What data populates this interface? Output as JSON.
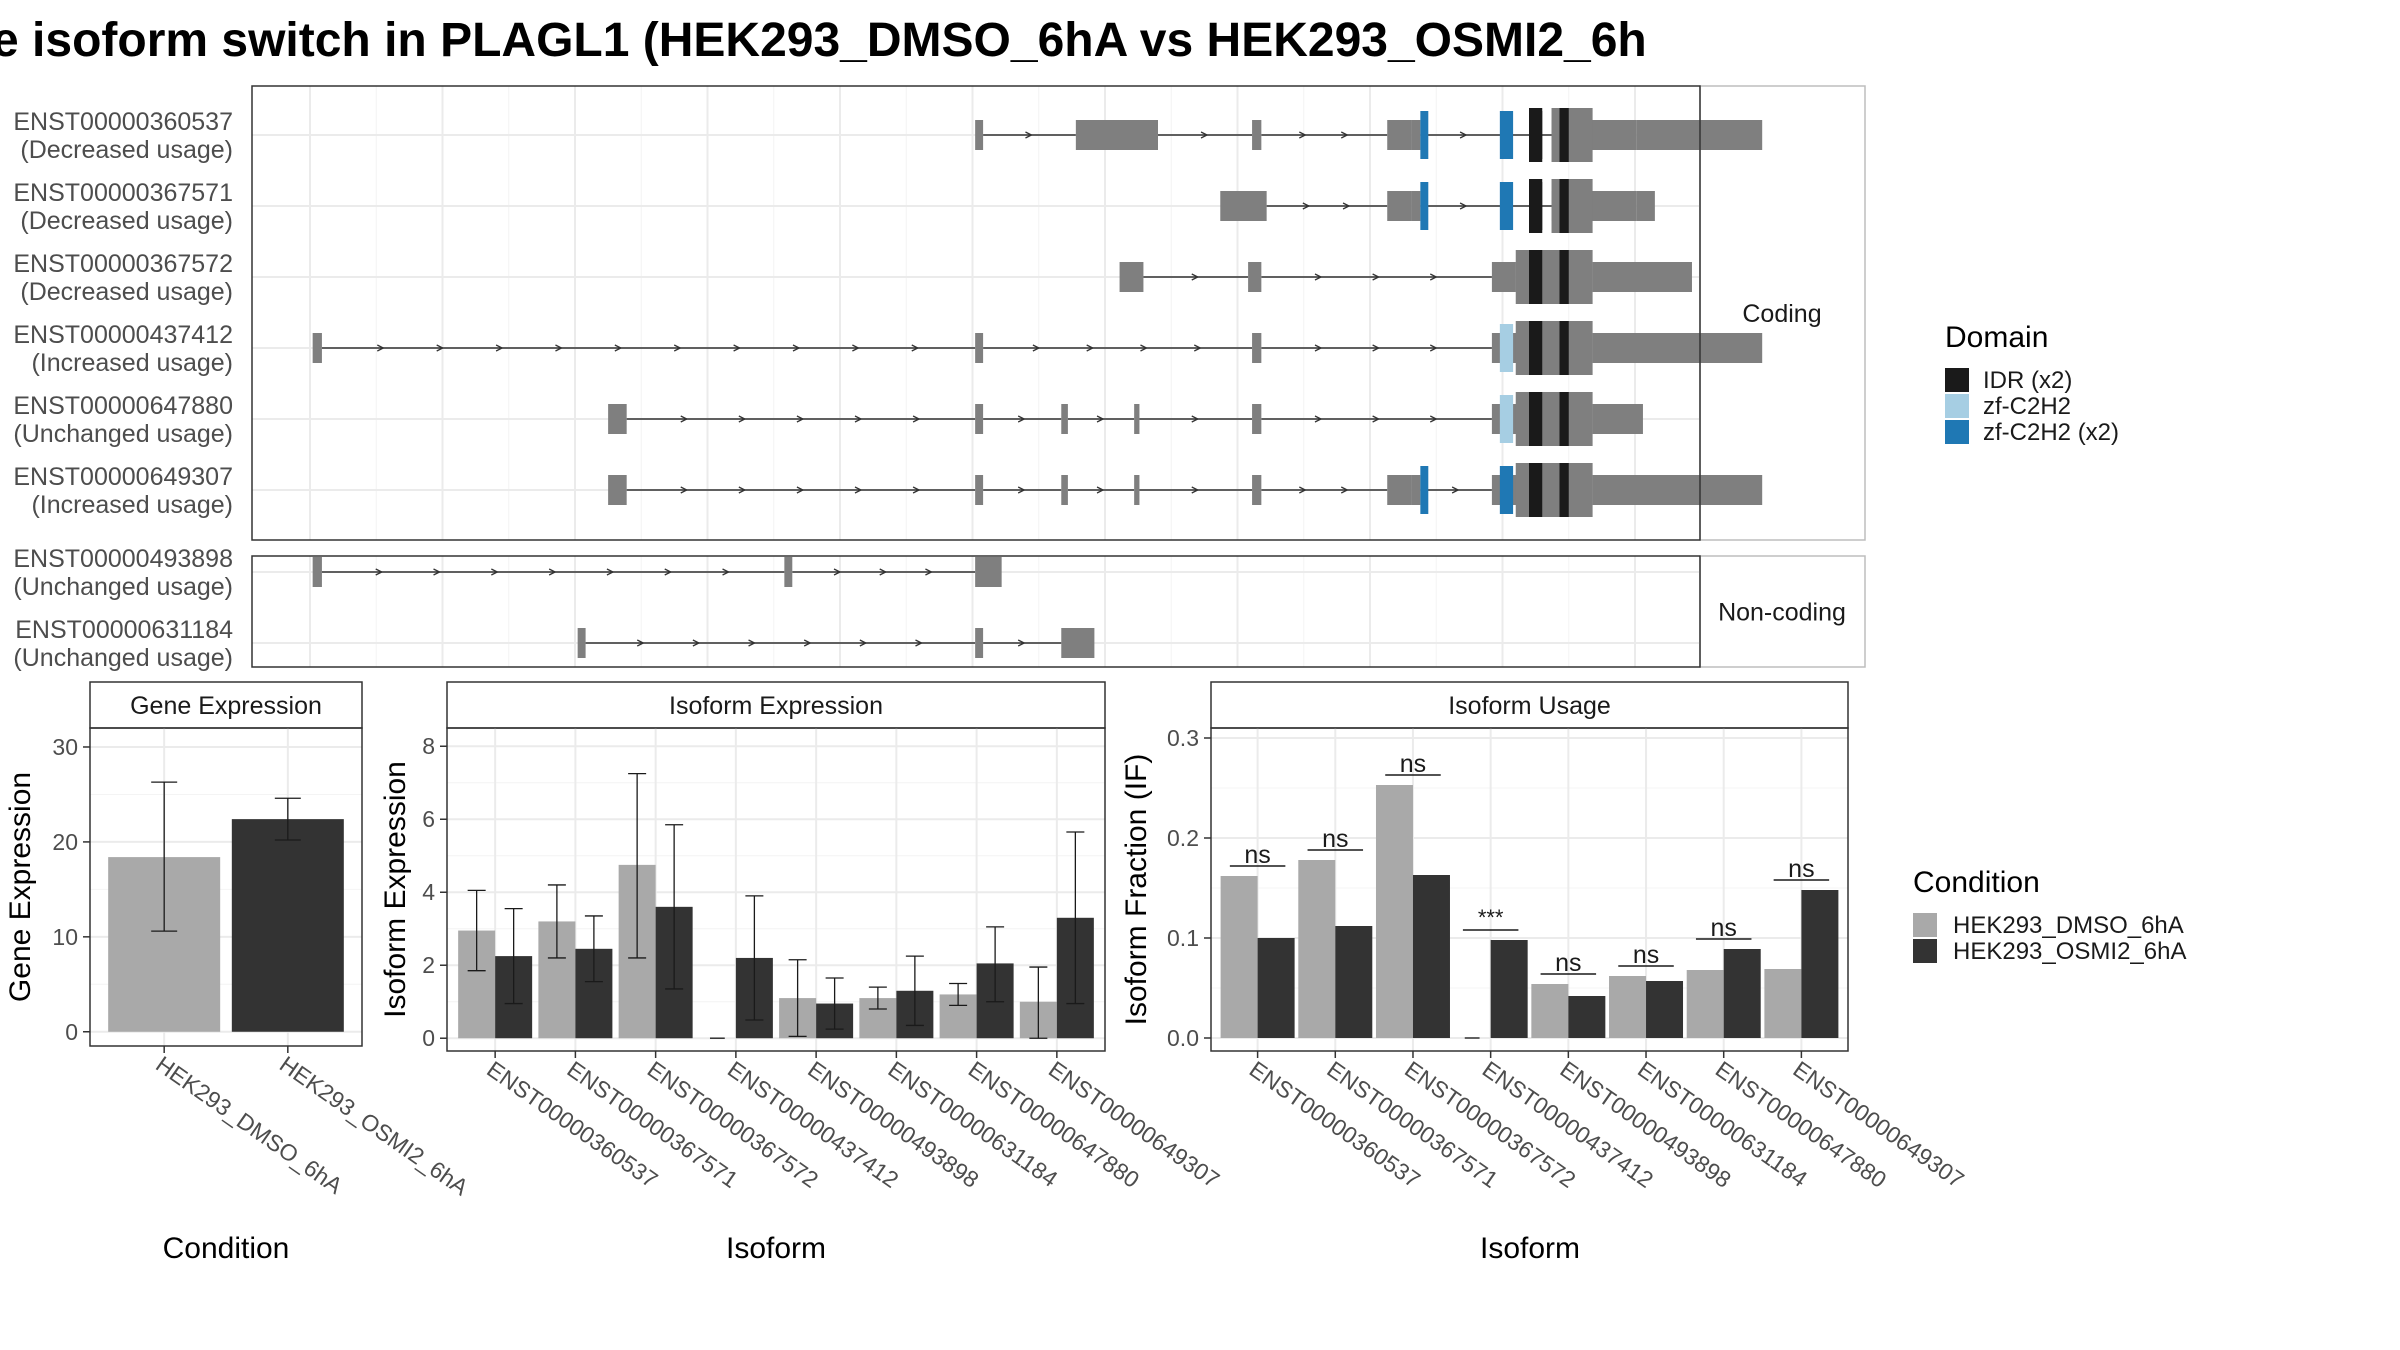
{
  "title": "e isoform switch in PLAGL1 (HEK293_DMSO_6hA vs HEK293_OSMI2_6h",
  "colors": {
    "exon": "#7f7f7f",
    "idr": "#1a1a1a",
    "zf_single": "#a6cee3",
    "zf_double": "#1f78b4",
    "cond1": "#a9a9a9",
    "cond2": "#333333"
  },
  "structure": {
    "coding_strip": "Coding",
    "noncoding_strip": "Non-coding",
    "genomic_range": [
      0,
      100
    ],
    "isoforms": [
      {
        "id": "ENST00000360537",
        "usage": "(Decreased usage)",
        "group": "coding",
        "exons": [
          [
            50.2,
            50.8
          ],
          [
            57.8,
            64.0
          ],
          [
            71.1,
            71.8
          ],
          [
            81.3,
            83.1
          ],
          [
            83.1,
            83.8
          ],
          [
            93.7,
            100.1
          ],
          [
            100.1,
            109.6
          ]
        ],
        "domains": [
          {
            "type": "zf_double",
            "start": 83.8,
            "end": 84.4
          },
          {
            "type": "zf_double",
            "start": 89.8,
            "end": 90.8
          },
          {
            "type": "idr",
            "start": 92.0,
            "end": 93.0
          },
          {
            "type": "idr",
            "start": 94.3,
            "end": 95.0
          }
        ]
      },
      {
        "id": "ENST00000367571",
        "usage": "(Decreased usage)",
        "group": "coding",
        "exons": [
          [
            68.7,
            72.2
          ],
          [
            81.3,
            83.1
          ],
          [
            83.1,
            83.8
          ],
          [
            93.7,
            100.1
          ],
          [
            100.1,
            101.5
          ]
        ],
        "domains": [
          {
            "type": "zf_double",
            "start": 83.8,
            "end": 84.4
          },
          {
            "type": "zf_double",
            "start": 89.8,
            "end": 90.8
          },
          {
            "type": "idr",
            "start": 92.0,
            "end": 93.0
          },
          {
            "type": "idr",
            "start": 94.3,
            "end": 95.0
          }
        ]
      },
      {
        "id": "ENST00000367572",
        "usage": "(Decreased usage)",
        "group": "coding",
        "exons": [
          [
            61.1,
            62.9
          ],
          [
            70.8,
            71.8
          ],
          [
            89.2,
            91.0
          ],
          [
            91.0,
            96.8
          ],
          [
            96.8,
            104.3
          ]
        ],
        "domains": [
          {
            "type": "idr",
            "start": 92.0,
            "end": 93.0
          },
          {
            "type": "idr",
            "start": 94.3,
            "end": 95.0
          }
        ]
      },
      {
        "id": "ENST00000437412",
        "usage": "(Increased usage)",
        "group": "coding",
        "exons": [
          [
            0.2,
            0.9
          ],
          [
            50.2,
            50.8
          ],
          [
            71.1,
            71.8
          ],
          [
            89.2,
            96.8
          ],
          [
            96.8,
            109.6
          ]
        ],
        "domains": [
          {
            "type": "zf_single",
            "start": 89.8,
            "end": 90.8
          },
          {
            "type": "idr",
            "start": 92.0,
            "end": 93.0
          },
          {
            "type": "idr",
            "start": 94.3,
            "end": 95.0
          }
        ]
      },
      {
        "id": "ENST00000647880",
        "usage": "(Unchanged usage)",
        "group": "coding",
        "exons": [
          [
            22.5,
            23.9
          ],
          [
            50.2,
            50.8
          ],
          [
            56.7,
            57.2
          ],
          [
            62.2,
            62.6
          ],
          [
            71.1,
            71.8
          ],
          [
            89.2,
            96.8
          ],
          [
            96.8,
            100.6
          ]
        ],
        "domains": [
          {
            "type": "zf_single",
            "start": 89.8,
            "end": 90.8
          },
          {
            "type": "idr",
            "start": 92.0,
            "end": 93.0
          },
          {
            "type": "idr",
            "start": 94.3,
            "end": 95.0
          }
        ]
      },
      {
        "id": "ENST00000649307",
        "usage": "(Increased usage)",
        "group": "coding",
        "exons": [
          [
            22.5,
            23.9
          ],
          [
            50.2,
            50.8
          ],
          [
            56.7,
            57.2
          ],
          [
            62.2,
            62.6
          ],
          [
            71.1,
            71.8
          ],
          [
            81.3,
            83.1
          ],
          [
            83.1,
            83.8
          ],
          [
            89.2,
            96.8
          ],
          [
            96.8,
            109.6
          ]
        ],
        "domains": [
          {
            "type": "zf_double",
            "start": 83.8,
            "end": 84.4
          },
          {
            "type": "zf_double",
            "start": 89.8,
            "end": 90.8
          },
          {
            "type": "idr",
            "start": 92.0,
            "end": 93.0
          },
          {
            "type": "idr",
            "start": 94.3,
            "end": 95.0
          }
        ]
      },
      {
        "id": "ENST00000493898",
        "usage": "(Unchanged usage)",
        "group": "noncoding",
        "exons": [
          [
            0.2,
            0.9
          ],
          [
            35.8,
            36.4
          ],
          [
            50.2,
            52.2
          ]
        ],
        "domains": []
      },
      {
        "id": "ENST00000631184",
        "usage": "(Unchanged usage)",
        "group": "noncoding",
        "exons": [
          [
            20.2,
            20.8
          ],
          [
            50.2,
            50.8
          ],
          [
            56.7,
            59.2
          ]
        ],
        "domains": []
      }
    ]
  },
  "legend_domain": {
    "title": "Domain",
    "items": [
      {
        "label": "IDR (x2)",
        "type": "idr"
      },
      {
        "label": "zf-C2H2",
        "type": "zf_single"
      },
      {
        "label": "zf-C2H2 (x2)",
        "type": "zf_double"
      }
    ]
  },
  "legend_condition": {
    "title": "Condition",
    "items": [
      "HEK293_DMSO_6hA",
      "HEK293_OSMI2_6hA"
    ]
  },
  "chart_data": [
    {
      "type": "bar",
      "title": "Gene Expression",
      "xlabel": "Condition",
      "ylabel": "Gene Expression",
      "categories": [
        "HEK293_DMSO_6hA",
        "HEK293_OSMI2_6hA"
      ],
      "values": [
        18.4,
        22.4
      ],
      "err_low": [
        10.6,
        20.2
      ],
      "err_high": [
        26.3,
        24.6
      ],
      "ylim": [
        -1.5,
        32
      ],
      "yticks": [
        0,
        10,
        20,
        30
      ]
    },
    {
      "type": "bar",
      "title": "Isoform Expression",
      "xlabel": "Isoform",
      "ylabel": "Isoform Expression",
      "categories": [
        "ENST00000360537",
        "ENST00000367571",
        "ENST00000367572",
        "ENST00000437412",
        "ENST00000493898",
        "ENST00000631184",
        "ENST00000647880",
        "ENST00000649307"
      ],
      "series": [
        {
          "name": "HEK293_DMSO_6hA",
          "values": [
            2.95,
            3.2,
            4.75,
            0.0,
            1.1,
            1.1,
            1.2,
            1.0
          ],
          "err_low": [
            1.85,
            2.2,
            2.2,
            0.0,
            0.05,
            0.8,
            0.9,
            0.0
          ],
          "err_high": [
            4.05,
            4.2,
            7.25,
            0.0,
            2.15,
            1.4,
            1.5,
            1.95
          ]
        },
        {
          "name": "HEK293_OSMI2_6hA",
          "values": [
            2.25,
            2.45,
            3.6,
            2.2,
            0.95,
            1.3,
            2.05,
            3.3
          ],
          "err_low": [
            0.95,
            1.55,
            1.35,
            0.5,
            0.25,
            0.35,
            1.0,
            0.95
          ],
          "err_high": [
            3.55,
            3.35,
            5.85,
            3.9,
            1.65,
            2.25,
            3.05,
            5.65
          ]
        }
      ],
      "ylim": [
        -0.35,
        8.5
      ],
      "yticks": [
        0,
        2,
        4,
        6,
        8
      ]
    },
    {
      "type": "bar",
      "title": "Isoform Usage",
      "xlabel": "Isoform",
      "ylabel": "Isoform Fraction (IF)",
      "categories": [
        "ENST00000360537",
        "ENST00000367571",
        "ENST00000367572",
        "ENST00000437412",
        "ENST00000493898",
        "ENST00000631184",
        "ENST00000647880",
        "ENST00000649307"
      ],
      "series": [
        {
          "name": "HEK293_DMSO_6hA",
          "values": [
            0.162,
            0.178,
            0.253,
            0.0,
            0.054,
            0.062,
            0.068,
            0.069
          ]
        },
        {
          "name": "HEK293_OSMI2_6hA",
          "values": [
            0.1,
            0.112,
            0.163,
            0.098,
            0.042,
            0.057,
            0.089,
            0.148
          ]
        }
      ],
      "significance": [
        "ns",
        "ns",
        "ns",
        "***",
        "ns",
        "ns",
        "ns",
        "ns"
      ],
      "ylim": [
        -0.013,
        0.31
      ],
      "yticks": [
        0.0,
        0.1,
        0.2,
        0.3
      ],
      "ytick_labels": [
        "0.0",
        "0.1",
        "0.2",
        "0.3"
      ]
    }
  ]
}
